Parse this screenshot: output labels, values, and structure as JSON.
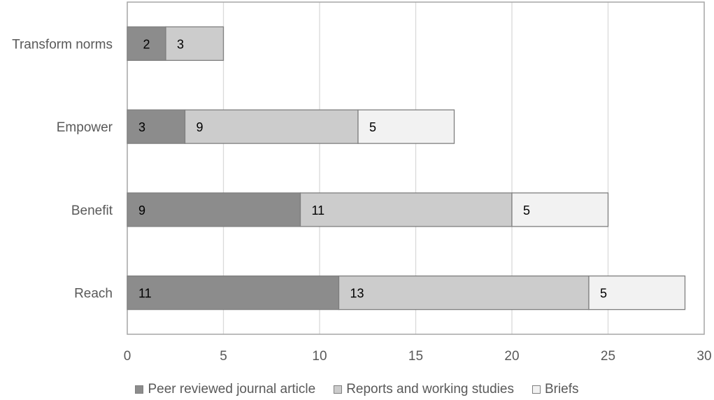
{
  "chart_data": {
    "type": "bar",
    "orientation": "horizontal",
    "stacked": true,
    "categories": [
      "Transform norms",
      "Empower",
      "Benefit",
      "Reach"
    ],
    "series": [
      {
        "name": "Peer reviewed journal article",
        "values": [
          2,
          3,
          9,
          11
        ],
        "color": "#8c8c8c"
      },
      {
        "name": "Reports and working studies",
        "values": [
          3,
          9,
          11,
          13
        ],
        "color": "#cccccc"
      },
      {
        "name": "Briefs",
        "values": [
          0,
          5,
          5,
          5
        ],
        "color": "#f2f2f2"
      }
    ],
    "xlim": [
      0,
      30
    ],
    "xticks": [
      "0",
      "5",
      "10",
      "15",
      "20",
      "25",
      "30"
    ],
    "grid": "vertical",
    "legend_position": "bottom"
  }
}
